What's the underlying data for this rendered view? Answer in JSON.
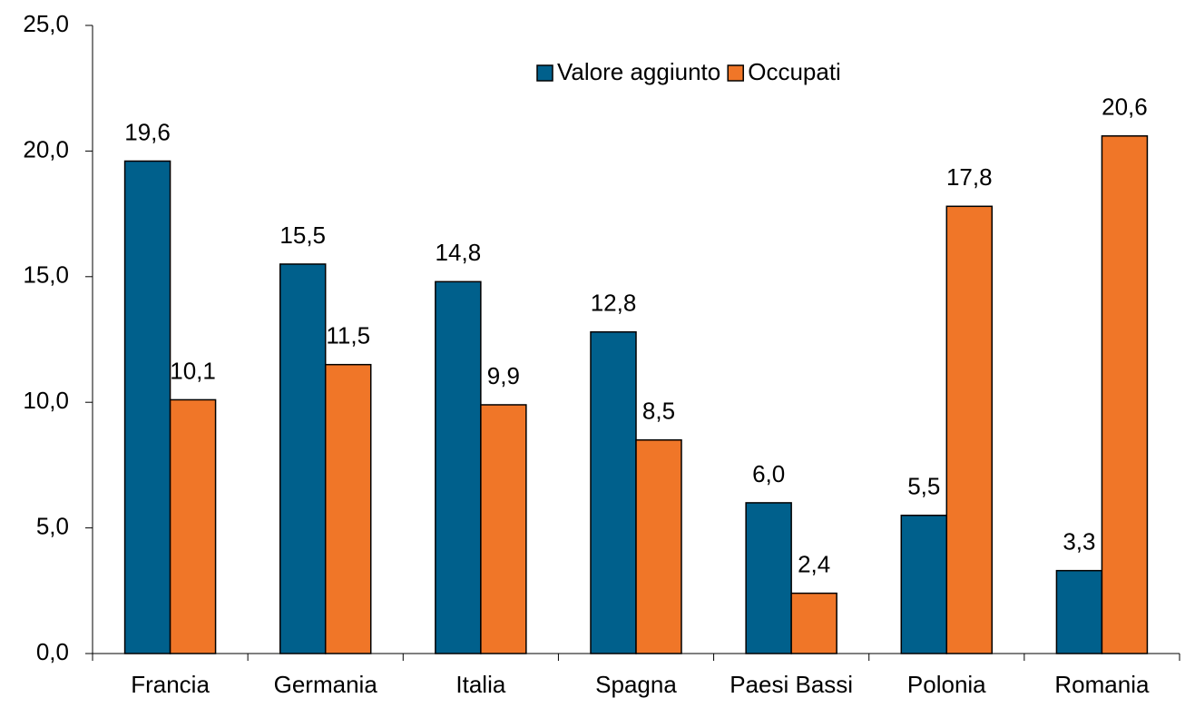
{
  "chart_data": {
    "type": "bar",
    "categories": [
      "Francia",
      "Germania",
      "Italia",
      "Spagna",
      "Paesi Bassi",
      "Polonia",
      "Romania"
    ],
    "series": [
      {
        "name": "Valore aggiunto",
        "color": "#00608c",
        "values": [
          19.6,
          15.5,
          14.8,
          12.8,
          6.0,
          5.5,
          3.3
        ],
        "value_labels": [
          "19,6",
          "15,5",
          "14,8",
          "12,8",
          "6,0",
          "5,5",
          "3,3"
        ]
      },
      {
        "name": "Occupati",
        "color": "#f07628",
        "values": [
          10.1,
          11.5,
          9.9,
          8.5,
          2.4,
          17.8,
          20.6
        ],
        "value_labels": [
          "10,1",
          "11,5",
          "9,9",
          "8,5",
          "2,4",
          "17,8",
          "20,6"
        ]
      }
    ],
    "ylim": [
      0,
      25
    ],
    "yticks": [
      {
        "value": 0,
        "label": "0,0"
      },
      {
        "value": 5,
        "label": "5,0"
      },
      {
        "value": 10,
        "label": "10,0"
      },
      {
        "value": 15,
        "label": "15,0"
      },
      {
        "value": 20,
        "label": "20,0"
      },
      {
        "value": 25,
        "label": "25,0"
      }
    ],
    "legend": "top"
  }
}
